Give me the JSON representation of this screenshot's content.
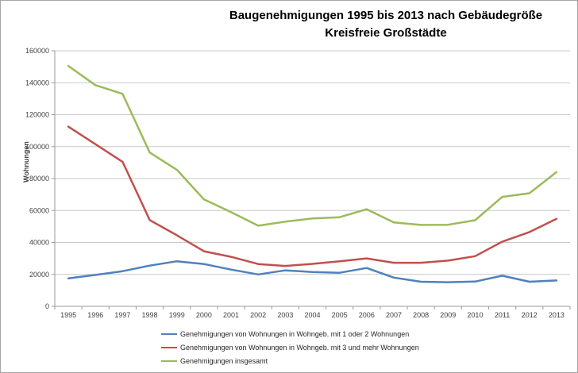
{
  "window": {
    "background": "#ffffff",
    "border_color": "#a6a6a6"
  },
  "chart_data": {
    "type": "line",
    "title_line1": "Baugenehmigungen 1995 bis 2013 nach Gebäudegröße",
    "title_line2": "Kreisfreie Großstädte",
    "ylabel": "Wohnungen",
    "xlabel": "",
    "ylim": [
      0,
      160000
    ],
    "y_step": 20000,
    "grid": true,
    "legend_position": "bottom-left",
    "axis_color": "#9a9a9a",
    "grid_color": "#c9c9c9",
    "tick_label_color": "#404040",
    "categories": [
      "1995",
      "1996",
      "1997",
      "1998",
      "1999",
      "2000",
      "2001",
      "2002",
      "2003",
      "2004",
      "2005",
      "2006",
      "2007",
      "2008",
      "2009",
      "2010",
      "2011",
      "2012",
      "2013"
    ],
    "series": [
      {
        "name": "Genehmigungen von Wohnungen in Wohngeb. mit 1 oder 2 Wohnungen",
        "color": "#4F81BD",
        "values": [
          17500,
          19700,
          22000,
          25500,
          28200,
          26500,
          23000,
          20000,
          22500,
          21500,
          21000,
          24000,
          18000,
          15400,
          15100,
          15500,
          19200,
          15400,
          16200
        ]
      },
      {
        "name": "Genehmigungen von Wohnungen in Wohngeb. mit 3 und mehr Wohnungen",
        "color": "#C0504D",
        "values": [
          112500,
          101500,
          90500,
          54000,
          44500,
          34500,
          31000,
          26500,
          25300,
          26600,
          28200,
          30000,
          27300,
          27300,
          28600,
          31400,
          40500,
          46500,
          54800
        ]
      },
      {
        "name": "Genehmigungen insgesamt",
        "color": "#9BBB59",
        "values": [
          150500,
          138500,
          133000,
          96300,
          85500,
          67000,
          59000,
          50500,
          53000,
          55000,
          55800,
          60800,
          52500,
          51000,
          51100,
          53900,
          68500,
          70800,
          84000
        ]
      }
    ]
  }
}
